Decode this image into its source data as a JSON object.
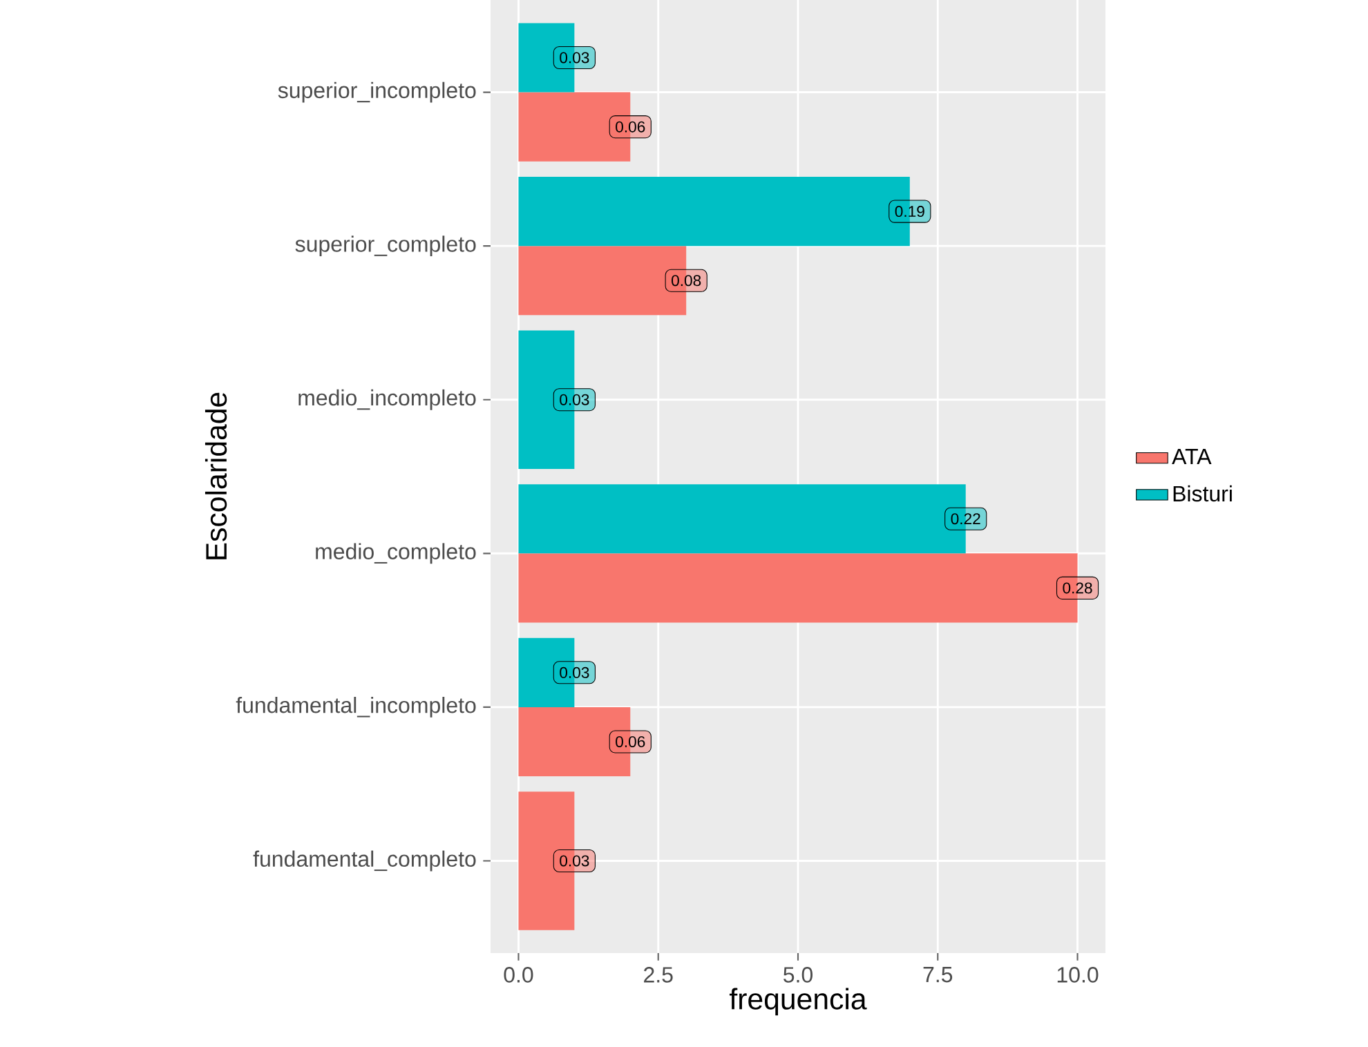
{
  "chart_data": {
    "type": "bar",
    "orientation": "horizontal",
    "xlabel": "frequencia",
    "ylabel": "Escolaridade",
    "categories": [
      "superior_incompleto",
      "superior_completo",
      "medio_incompleto",
      "medio_completo",
      "fundamental_incompleto",
      "fundamental_completo"
    ],
    "series": [
      {
        "name": "ATA",
        "color": "#f8766d",
        "values": [
          2,
          3,
          null,
          10,
          2,
          1
        ]
      },
      {
        "name": "Bisturi",
        "color": "#00bfc4",
        "values": [
          1,
          7,
          1,
          8,
          1,
          null
        ]
      }
    ],
    "annotations": [
      {
        "text": "0.06",
        "x": 2,
        "y": "superior_incompleto"
      },
      {
        "text": "0.03",
        "x": 1,
        "y": "superior_incompleto"
      },
      {
        "text": "0.08",
        "x": 3,
        "y": "superior_completo"
      },
      {
        "text": "0.19",
        "x": 7,
        "y": "superior_completo"
      },
      {
        "text": "0.03",
        "x": 1,
        "y": "medio_incompleto"
      },
      {
        "text": "0.28",
        "x": 10,
        "y": "medio_completo"
      },
      {
        "text": "0.22",
        "x": 8,
        "y": "medio_completo"
      },
      {
        "text": "0.06",
        "x": 2,
        "y": "fundamental_incompleto"
      },
      {
        "text": "0.03",
        "x": 1,
        "y": "fundamental_incompleto"
      },
      {
        "text": "0.03",
        "x": 1,
        "y": "fundamental_completo"
      }
    ],
    "xlim": [
      -0.5,
      10.5
    ],
    "xticks": [
      {
        "value": 0,
        "label": "0.0"
      },
      {
        "value": 2.5,
        "label": "2.5"
      },
      {
        "value": 5,
        "label": "5.0"
      },
      {
        "value": 7.5,
        "label": "7.5"
      },
      {
        "value": 10,
        "label": "10.0"
      }
    ],
    "grid": true,
    "legend": "right"
  }
}
